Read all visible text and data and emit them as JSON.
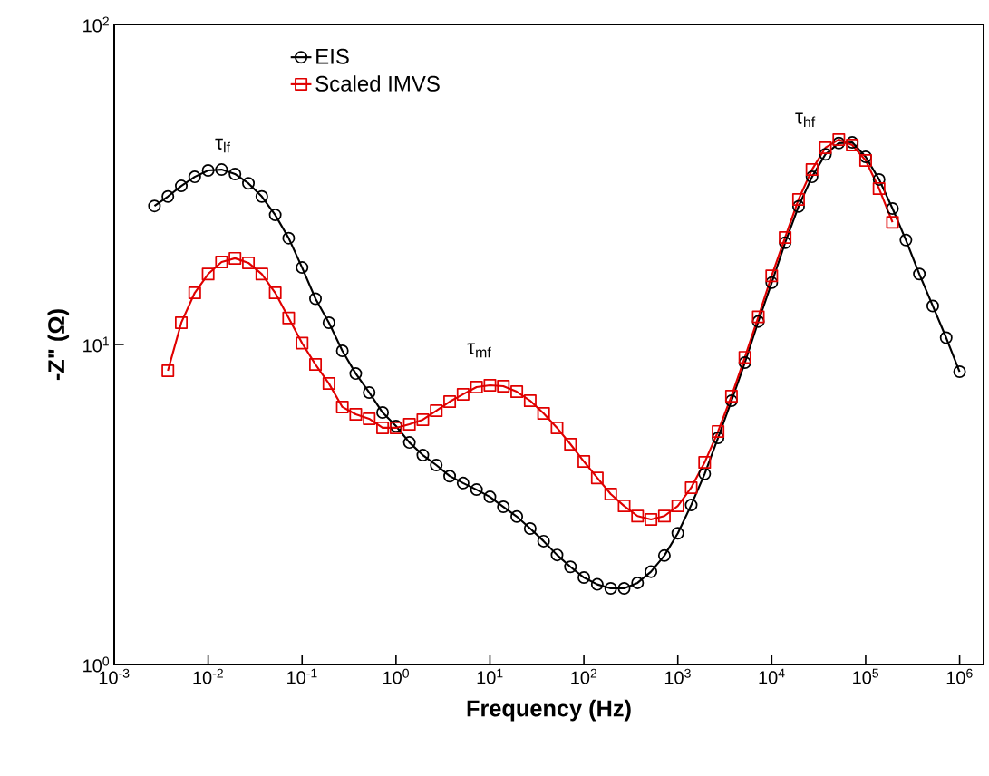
{
  "chart_data": {
    "type": "line",
    "xlabel": "Frequency (Hz)",
    "ylabel": "-Z\" (Ω)",
    "log": "xy",
    "legend": "top",
    "line_style": "solid",
    "xlim": [
      0.001,
      1800000
    ],
    "ylim": [
      1,
      100
    ],
    "xticks": [
      {
        "value": 0.001,
        "label": "10$^{-3}$"
      },
      {
        "value": 0.01,
        "label": "10$^{-2}$"
      },
      {
        "value": 0.1,
        "label": "10$^{-1}$"
      },
      {
        "value": 1,
        "label": "10$^{0}$"
      },
      {
        "value": 10,
        "label": "10$^{1}$"
      },
      {
        "value": 100,
        "label": "10$^{2}$"
      },
      {
        "value": 1000,
        "label": "10$^{3}$"
      },
      {
        "value": 10000,
        "label": "10$^{4}$"
      },
      {
        "value": 100000,
        "label": "10$^{5}$"
      },
      {
        "value": 1000000,
        "label": "10$^{6}$"
      }
    ],
    "yticks": [
      {
        "value": 1,
        "label": "10$^{0}$"
      },
      {
        "value": 10,
        "label": "10$^{1}$"
      },
      {
        "value": 100,
        "label": "10$^{2}$"
      }
    ],
    "annotations": [
      "τ$_{lf}$",
      "τ$_{mf}$",
      "τ$_{hf}$"
    ],
    "series": [
      {
        "name": "EIS",
        "color": "#000000",
        "marker": "circle",
        "x": [
          0.002683,
          0.003728,
          0.005179,
          0.007197,
          0.01,
          0.01389,
          0.01931,
          0.02683,
          0.03728,
          0.05179,
          0.07197,
          0.1,
          0.1389,
          0.1931,
          0.2683,
          0.3728,
          0.5179,
          0.7197,
          1,
          1.389,
          1.931,
          2.683,
          3.728,
          5.179,
          7.197,
          10,
          13.89,
          19.31,
          26.83,
          37.28,
          51.79,
          71.97,
          100,
          138.9,
          193.1,
          268.3,
          372.8,
          517.9,
          719.7,
          1000,
          1389,
          1931,
          2683,
          3728,
          5179,
          7197,
          10000,
          13890,
          19310,
          26830,
          37280,
          51790,
          71970,
          100000,
          138900,
          193100,
          268300,
          372800,
          517900,
          719700,
          1000000
        ],
        "values": [
          27.1,
          29.0,
          31.3,
          33.4,
          35.0,
          35.2,
          34.1,
          31.9,
          29.0,
          25.4,
          21.5,
          17.4,
          13.9,
          11.7,
          9.55,
          8.11,
          7.08,
          6.13,
          5.56,
          4.94,
          4.51,
          4.2,
          3.88,
          3.69,
          3.52,
          3.34,
          3.11,
          2.9,
          2.66,
          2.43,
          2.2,
          2.02,
          1.87,
          1.78,
          1.73,
          1.73,
          1.8,
          1.95,
          2.19,
          2.57,
          3.15,
          3.94,
          5.11,
          6.67,
          8.78,
          11.8,
          15.6,
          20.8,
          27.0,
          33.4,
          39.3,
          42.6,
          42.8,
          38.6,
          32.8,
          26.6,
          21.2,
          16.6,
          13.2,
          10.5,
          8.22
        ]
      },
      {
        "name": "Scaled IMVS",
        "color": "#e00000",
        "marker": "square",
        "x": [
          0.003728,
          0.005179,
          0.007197,
          0.01,
          0.01389,
          0.01931,
          0.02683,
          0.03728,
          0.05179,
          0.07197,
          0.1,
          0.1389,
          0.1931,
          0.2683,
          0.3728,
          0.5179,
          0.7197,
          1,
          1.389,
          1.931,
          2.683,
          3.728,
          5.179,
          7.197,
          10,
          13.89,
          19.31,
          26.83,
          37.28,
          51.79,
          71.97,
          100,
          138.9,
          193.1,
          268.3,
          372.8,
          517.9,
          719.7,
          1000,
          1389,
          1931,
          2683,
          3728,
          5179,
          7197,
          10000,
          13890,
          19310,
          26830,
          37280,
          51790,
          71970,
          100000,
          138900,
          193100
        ],
        "values": [
          8.28,
          11.7,
          14.5,
          16.6,
          18.1,
          18.6,
          18.0,
          16.6,
          14.5,
          12.1,
          10.1,
          8.66,
          7.55,
          6.38,
          6.05,
          5.86,
          5.49,
          5.49,
          5.63,
          5.82,
          6.21,
          6.63,
          6.99,
          7.36,
          7.46,
          7.41,
          7.12,
          6.67,
          6.09,
          5.49,
          4.88,
          4.31,
          3.83,
          3.41,
          3.13,
          2.91,
          2.84,
          2.91,
          3.13,
          3.57,
          4.28,
          5.35,
          6.9,
          9.12,
          12.2,
          16.4,
          21.6,
          28.4,
          35.2,
          41.2,
          43.7,
          42.0,
          37.6,
          30.7,
          24.1
        ]
      }
    ]
  }
}
